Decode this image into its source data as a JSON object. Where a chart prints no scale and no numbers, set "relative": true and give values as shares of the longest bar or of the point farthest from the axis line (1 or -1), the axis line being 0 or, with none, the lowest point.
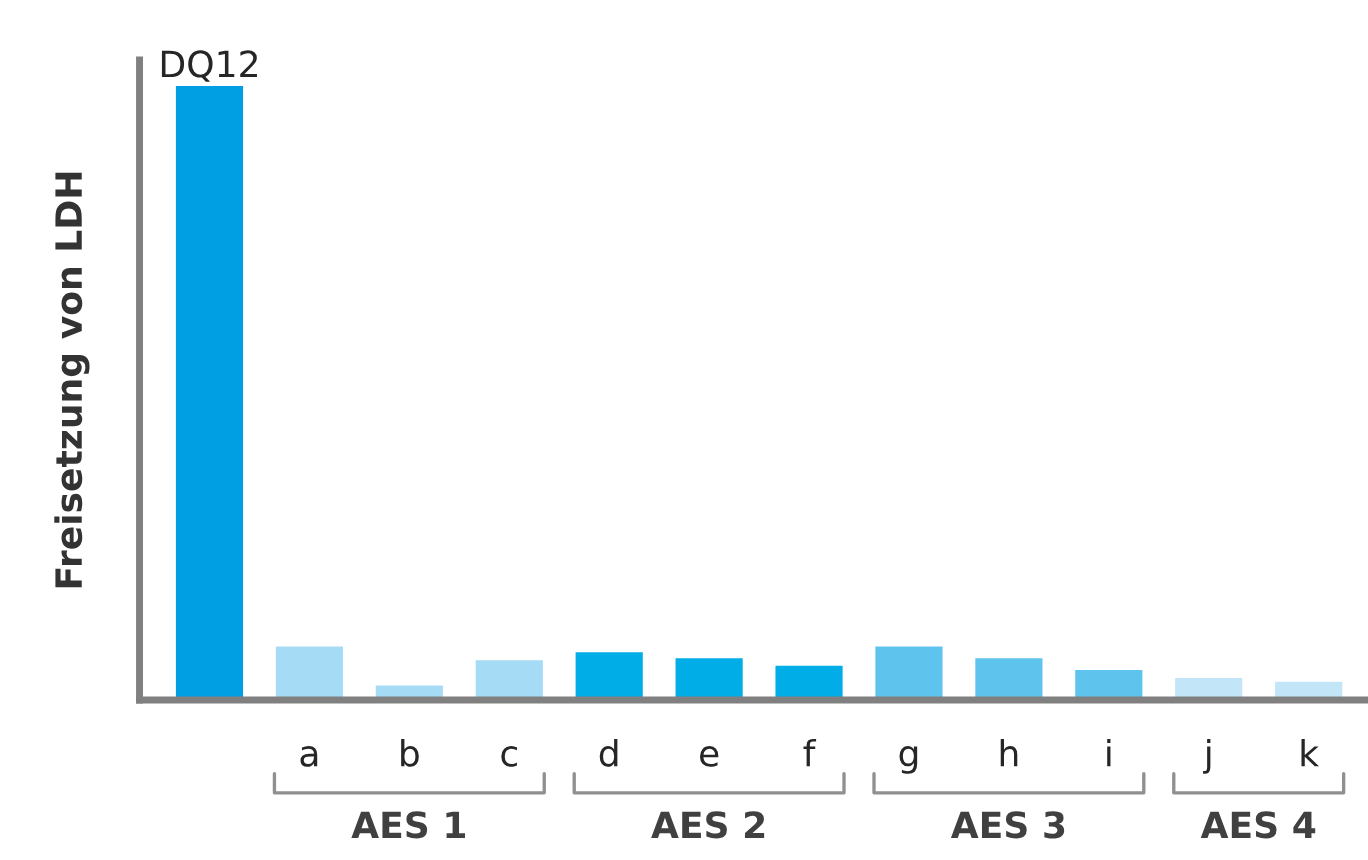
{
  "chart_data": {
    "type": "bar",
    "relative": true,
    "ylabel": "Freisetzung von LDH",
    "categories": [
      null,
      "a",
      "b",
      "c",
      "d",
      "e",
      "f",
      "g",
      "h",
      "i",
      "j",
      "k"
    ],
    "values": [
      1,
      0.089,
      0.026,
      0.067,
      0.08,
      0.07,
      0.058,
      0.089,
      0.07,
      0.051,
      0.038,
      0.032
    ],
    "colors": [
      "#009fe3",
      "#a6dbf5",
      "#a6dbf5",
      "#a6dbf5",
      "#00ade6",
      "#00ade6",
      "#00ade6",
      "#5ec4ee",
      "#5ec4ee",
      "#5ec4ee",
      "#c2e6f8",
      "#c2e6f8"
    ],
    "annotations": [
      {
        "text": "DQ12",
        "y": 1
      },
      "AES 1",
      "AES 2",
      "AES 3",
      "AES 4"
    ]
  }
}
